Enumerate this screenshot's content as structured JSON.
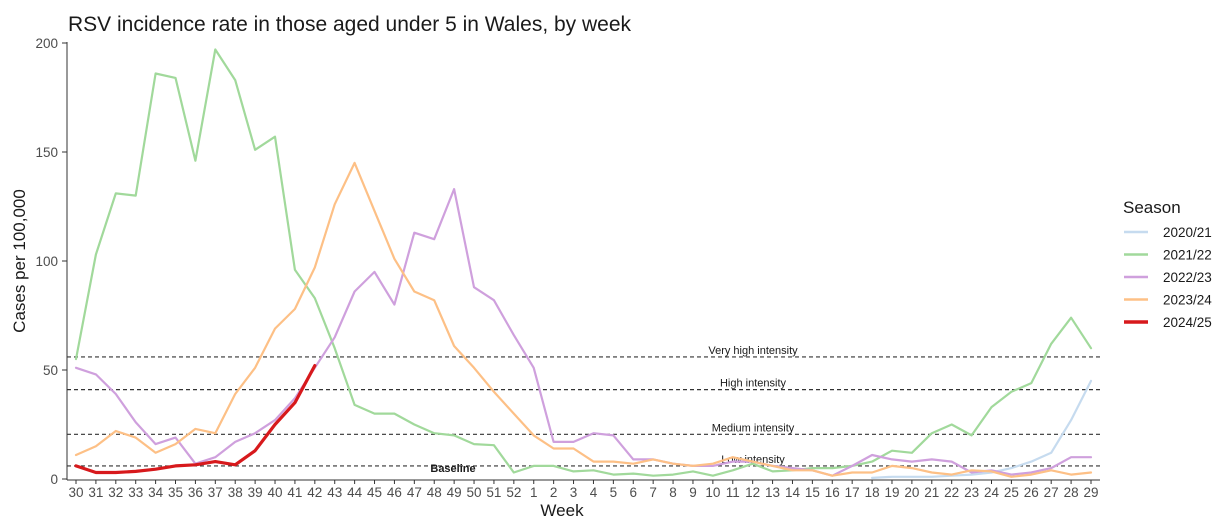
{
  "chart_data": {
    "type": "line",
    "title": "RSV incidence rate in those aged under 5 in Wales, by week",
    "xlabel": "Week",
    "ylabel": "Cases per 100,000",
    "ylim": [
      0,
      200
    ],
    "yticks": [
      0,
      50,
      100,
      150,
      200
    ],
    "grid": false,
    "legend_title": "Season",
    "legend_position": "right",
    "weeks": [
      "30",
      "31",
      "32",
      "33",
      "34",
      "35",
      "36",
      "37",
      "38",
      "39",
      "40",
      "41",
      "42",
      "43",
      "44",
      "45",
      "46",
      "47",
      "48",
      "49",
      "50",
      "51",
      "52",
      "1",
      "2",
      "3",
      "4",
      "5",
      "6",
      "7",
      "8",
      "9",
      "10",
      "11",
      "12",
      "13",
      "14",
      "15",
      "16",
      "17",
      "18",
      "19",
      "20",
      "21",
      "22",
      "23",
      "24",
      "25",
      "26",
      "27",
      "28",
      "29"
    ],
    "thresholds": [
      {
        "label": "Very high intensity",
        "value": 56
      },
      {
        "label": "High intensity",
        "value": 41
      },
      {
        "label": "Medium intensity",
        "value": 20.5
      },
      {
        "label": "Low intensity",
        "value": 6
      },
      {
        "label": "Baseline",
        "value": 6
      }
    ],
    "series": [
      {
        "name": "2020/21",
        "color": "#c6dbef",
        "width": 2.2,
        "values": [
          null,
          null,
          null,
          null,
          null,
          null,
          null,
          null,
          null,
          null,
          null,
          null,
          null,
          null,
          null,
          null,
          null,
          null,
          null,
          null,
          null,
          null,
          null,
          null,
          null,
          null,
          null,
          null,
          null,
          null,
          null,
          null,
          null,
          null,
          null,
          null,
          null,
          null,
          null,
          null,
          0.5,
          1,
          1,
          1,
          1.5,
          2,
          3,
          5,
          8,
          12,
          27,
          45
        ]
      },
      {
        "name": "2021/22",
        "color": "#a1d99b",
        "width": 2.2,
        "values": [
          55,
          103,
          131,
          130,
          186,
          184,
          146,
          197,
          183,
          151,
          157,
          96,
          83,
          60,
          34,
          30,
          30,
          25,
          21,
          20,
          16,
          15.5,
          3,
          6,
          6,
          3.5,
          4,
          2,
          2.5,
          1.5,
          2,
          3.5,
          1.5,
          4,
          7,
          3.5,
          4,
          5,
          5,
          6,
          8,
          13,
          12,
          21,
          25,
          20,
          33,
          40,
          44,
          62,
          74,
          60
        ]
      },
      {
        "name": "2022/23",
        "color": "#cfa0dd",
        "width": 2.2,
        "values": [
          51,
          48,
          39,
          26,
          16,
          19,
          7,
          10,
          17,
          21,
          27,
          37,
          51,
          65,
          86,
          95,
          80,
          113,
          110,
          133,
          88,
          82,
          66,
          51,
          17,
          17,
          21,
          20,
          9,
          9,
          7,
          6,
          6,
          8,
          8,
          6,
          5,
          4,
          1.5,
          6,
          11,
          9,
          8,
          9,
          8,
          3,
          4,
          2,
          3,
          5,
          10,
          10
        ]
      },
      {
        "name": "2023/24",
        "color": "#fdc086",
        "width": 2.2,
        "values": [
          11,
          15,
          22,
          19,
          12,
          16,
          23,
          21,
          39,
          51,
          69,
          78,
          97,
          126,
          145,
          123,
          101,
          86,
          82,
          61,
          51,
          40,
          30,
          20,
          14,
          14,
          8,
          8,
          7,
          9,
          7,
          6,
          7,
          10,
          8,
          6,
          4,
          4,
          1.5,
          3,
          3,
          6,
          5,
          3,
          2,
          4,
          3.5,
          1,
          2,
          4,
          2,
          3
        ]
      },
      {
        "name": "2024/25",
        "color": "#d7191c",
        "width": 3.2,
        "values": [
          6,
          3,
          3,
          3.5,
          4.5,
          6,
          6.5,
          8,
          6.5,
          13,
          25,
          35,
          52
        ]
      }
    ]
  }
}
